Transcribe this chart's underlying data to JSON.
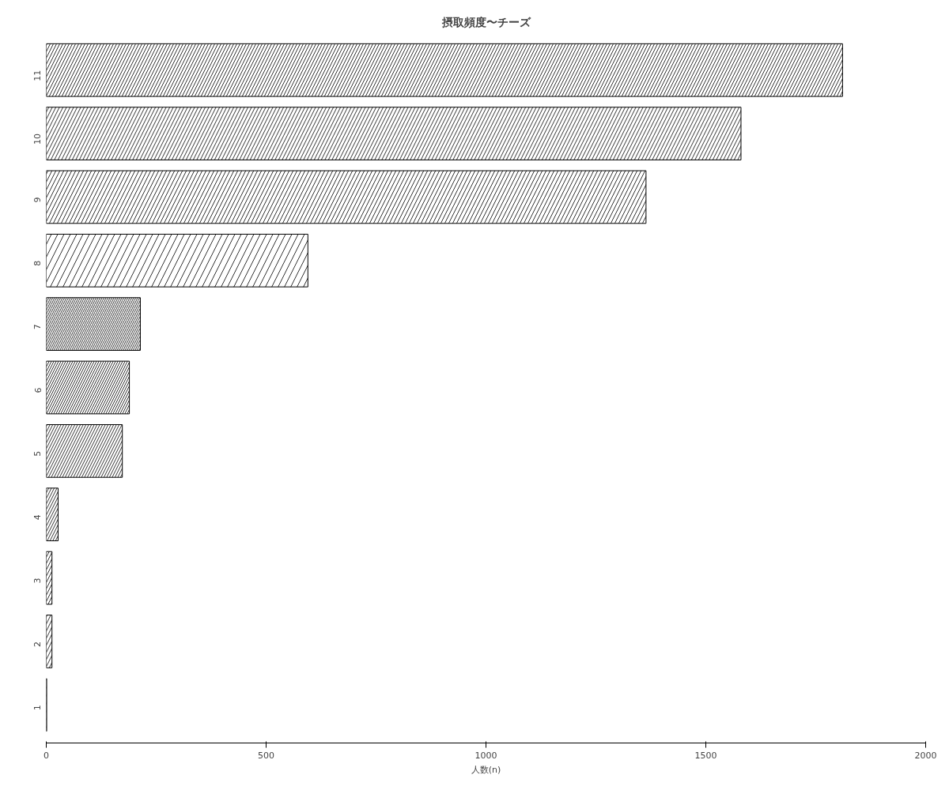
{
  "chart_data": {
    "type": "bar",
    "orientation": "horizontal",
    "title": "摂取頻度〜チーズ",
    "xlabel": "人数(n)",
    "categories": [
      "11",
      "10",
      "9",
      "8",
      "7",
      "6",
      "5",
      "4",
      "3",
      "2",
      "1"
    ],
    "values": [
      1811,
      1580,
      1364,
      595,
      214,
      189,
      173,
      27,
      13,
      13,
      1
    ],
    "color": "#ffffff",
    "xlim": [
      0,
      2000
    ],
    "xticks": [
      0,
      500,
      1000,
      1500,
      2000
    ],
    "grid": false
  }
}
